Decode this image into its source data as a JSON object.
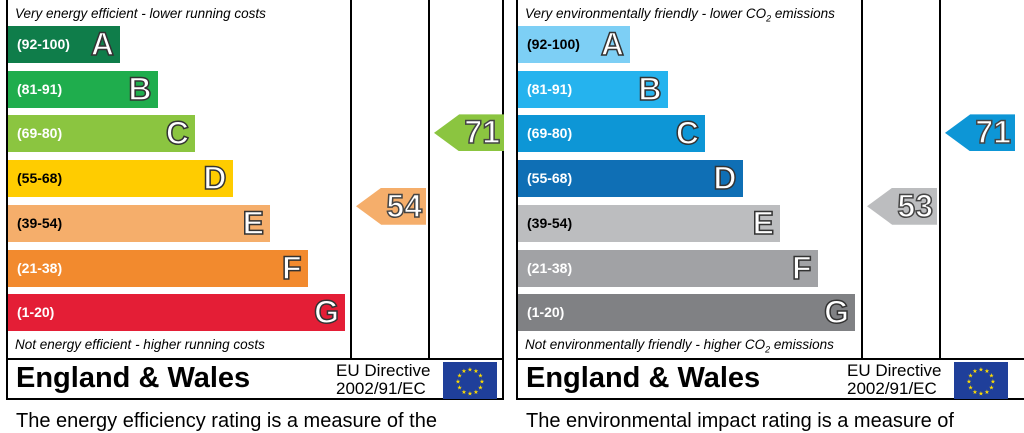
{
  "chart_data": [
    {
      "type": "bar",
      "top_caption": "Very energy efficient - lower running costs",
      "bottom_caption": "Not energy efficient - higher running costs",
      "bands": [
        {
          "letter": "A",
          "range": "(92-100)",
          "color": "#0f7d4a"
        },
        {
          "letter": "B",
          "range": "(81-91)",
          "color": "#1fad4d"
        },
        {
          "letter": "C",
          "range": "(69-80)",
          "color": "#8bc540"
        },
        {
          "letter": "D",
          "range": "(55-68)",
          "color": "#ffcc00"
        },
        {
          "letter": "E",
          "range": "(39-54)",
          "color": "#f5ae6b"
        },
        {
          "letter": "F",
          "range": "(21-38)",
          "color": "#f28a2e"
        },
        {
          "letter": "G",
          "range": "(1-20)",
          "color": "#e41e36"
        }
      ],
      "current": {
        "value": 54,
        "band": "E",
        "color": "#f5ae6b"
      },
      "potential": {
        "value": 71,
        "band": "C",
        "color": "#8bc540"
      },
      "region": "England & Wales",
      "directive": [
        "EU Directive",
        "2002/91/EC"
      ],
      "footnote": "The energy efficiency rating is a measure of the"
    },
    {
      "type": "bar",
      "top_caption_parts": [
        "Very environmentally friendly - lower CO",
        "2",
        " emissions"
      ],
      "bottom_caption_parts": [
        "Not environmentally friendly - higher CO",
        "2",
        " emissions"
      ],
      "bands": [
        {
          "letter": "A",
          "range": "(92-100)",
          "color": "#7dcff5"
        },
        {
          "letter": "B",
          "range": "(81-91)",
          "color": "#25b3ee"
        },
        {
          "letter": "C",
          "range": "(69-80)",
          "color": "#0d96d6"
        },
        {
          "letter": "D",
          "range": "(55-68)",
          "color": "#0f6fb5"
        },
        {
          "letter": "E",
          "range": "(39-54)",
          "color": "#bcbdbf"
        },
        {
          "letter": "F",
          "range": "(21-38)",
          "color": "#a1a2a5"
        },
        {
          "letter": "G",
          "range": "(1-20)",
          "color": "#808184"
        }
      ],
      "current": {
        "value": 53,
        "band": "E",
        "color": "#bcbdbf"
      },
      "potential": {
        "value": 71,
        "band": "C",
        "color": "#0d96d6"
      },
      "region": "England & Wales",
      "directive": [
        "EU Directive",
        "2002/91/EC"
      ],
      "footnote": "The environmental impact rating is a measure of"
    }
  ]
}
